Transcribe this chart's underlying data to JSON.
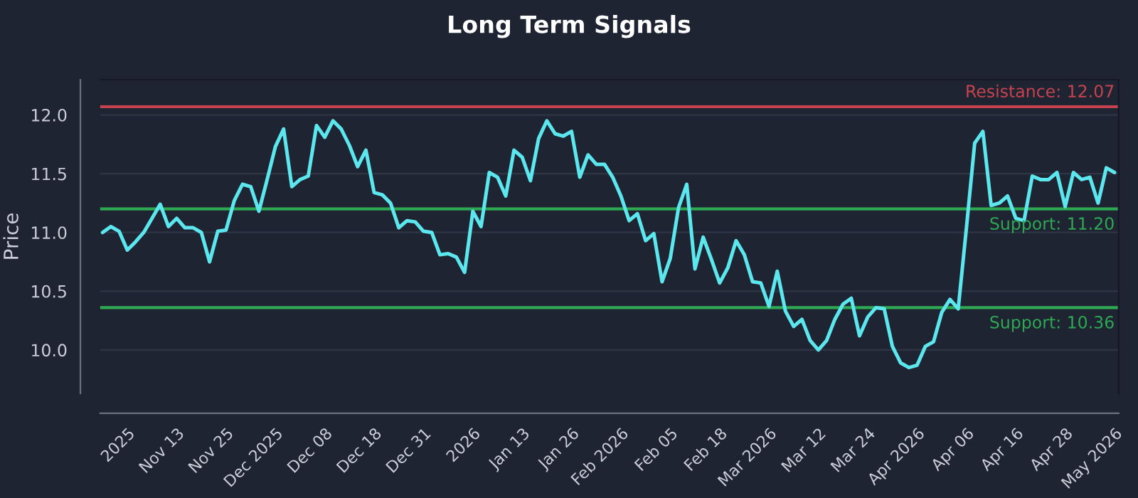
{
  "chart_data": {
    "type": "line",
    "title": "Long Term Signals",
    "ylabel": "Price",
    "categories": [
      null,
      null,
      null,
      "2025",
      null,
      null,
      null,
      null,
      null,
      "Nov 13",
      null,
      null,
      null,
      null,
      null,
      "Nov 25",
      null,
      null,
      null,
      null,
      null,
      "Dec 2025",
      null,
      null,
      null,
      null,
      null,
      "Dec 08",
      null,
      null,
      null,
      null,
      null,
      "Dec 18",
      null,
      null,
      null,
      null,
      null,
      "Dec 31",
      null,
      null,
      null,
      null,
      null,
      "2026",
      null,
      null,
      null,
      null,
      null,
      "Jan 13",
      null,
      null,
      null,
      null,
      null,
      "Jan 26",
      null,
      null,
      null,
      null,
      null,
      "Feb 2026",
      null,
      null,
      null,
      null,
      null,
      "Feb 05",
      null,
      null,
      null,
      null,
      null,
      "Feb 18",
      null,
      null,
      null,
      null,
      null,
      "Mar 2026",
      null,
      null,
      null,
      null,
      null,
      "Mar 12",
      null,
      null,
      null,
      null,
      null,
      "Mar 24",
      null,
      null,
      null,
      null,
      null,
      "Apr 2026",
      null,
      null,
      null,
      null,
      null,
      "Apr 06",
      null,
      null,
      null,
      null,
      null,
      "Apr 16",
      null,
      null,
      null,
      null,
      null,
      "Apr 28",
      null,
      null,
      null,
      null,
      null,
      "May 2026"
    ],
    "series": [
      {
        "color": "#5ce6ee",
        "values": [
          11.0,
          11.05,
          11.01,
          10.85,
          10.92,
          11.0,
          11.12,
          11.24,
          11.05,
          11.12,
          11.04,
          11.04,
          11.0,
          10.75,
          11.01,
          11.02,
          11.27,
          11.41,
          11.39,
          11.18,
          11.45,
          11.73,
          11.88,
          11.39,
          11.45,
          11.48,
          11.91,
          11.81,
          11.95,
          11.88,
          11.74,
          11.56,
          11.7,
          11.34,
          11.32,
          11.25,
          11.04,
          11.1,
          11.09,
          11.01,
          11.0,
          10.81,
          10.82,
          10.79,
          10.66,
          11.18,
          11.05,
          11.51,
          11.47,
          11.31,
          11.7,
          11.64,
          11.44,
          11.8,
          11.95,
          11.84,
          11.82,
          11.86,
          11.47,
          11.66,
          11.58,
          11.58,
          11.47,
          11.31,
          11.1,
          11.16,
          10.93,
          10.99,
          10.58,
          10.78,
          11.21,
          11.41,
          10.69,
          10.96,
          10.77,
          10.57,
          10.7,
          10.93,
          10.81,
          10.58,
          10.57,
          10.37,
          10.67,
          10.33,
          10.2,
          10.26,
          10.08,
          10.0,
          10.08,
          10.26,
          10.39,
          10.44,
          10.12,
          10.28,
          10.36,
          10.35,
          10.03,
          9.89,
          9.85,
          9.87,
          10.03,
          10.07,
          10.32,
          10.43,
          10.35,
          11.04,
          11.76,
          11.86,
          11.23,
          11.25,
          11.31,
          11.12,
          11.1,
          11.48,
          11.45,
          11.45,
          11.51,
          11.22,
          11.51,
          11.45,
          11.47,
          11.25,
          11.55,
          11.51
        ]
      }
    ],
    "ylim": [
      9.63,
      12.3
    ],
    "yticks": [
      {
        "value": 10,
        "label": "10.0"
      },
      {
        "value": 10.5,
        "label": "10.5"
      },
      {
        "value": 11,
        "label": "11.0"
      },
      {
        "value": 11.5,
        "label": "11.5"
      },
      {
        "value": 12,
        "label": "12.0"
      }
    ],
    "ref_lines": [
      {
        "axis": "y",
        "value": 12.07,
        "label": "Resistance: 12.07",
        "color": "#c8434f"
      },
      {
        "axis": "y",
        "value": 11.2,
        "label": "Support: 11.20",
        "color": "#2fa853"
      },
      {
        "axis": "y",
        "value": 10.36,
        "label": "Support: 10.36",
        "color": "#2fa853"
      }
    ],
    "grid": "y"
  }
}
